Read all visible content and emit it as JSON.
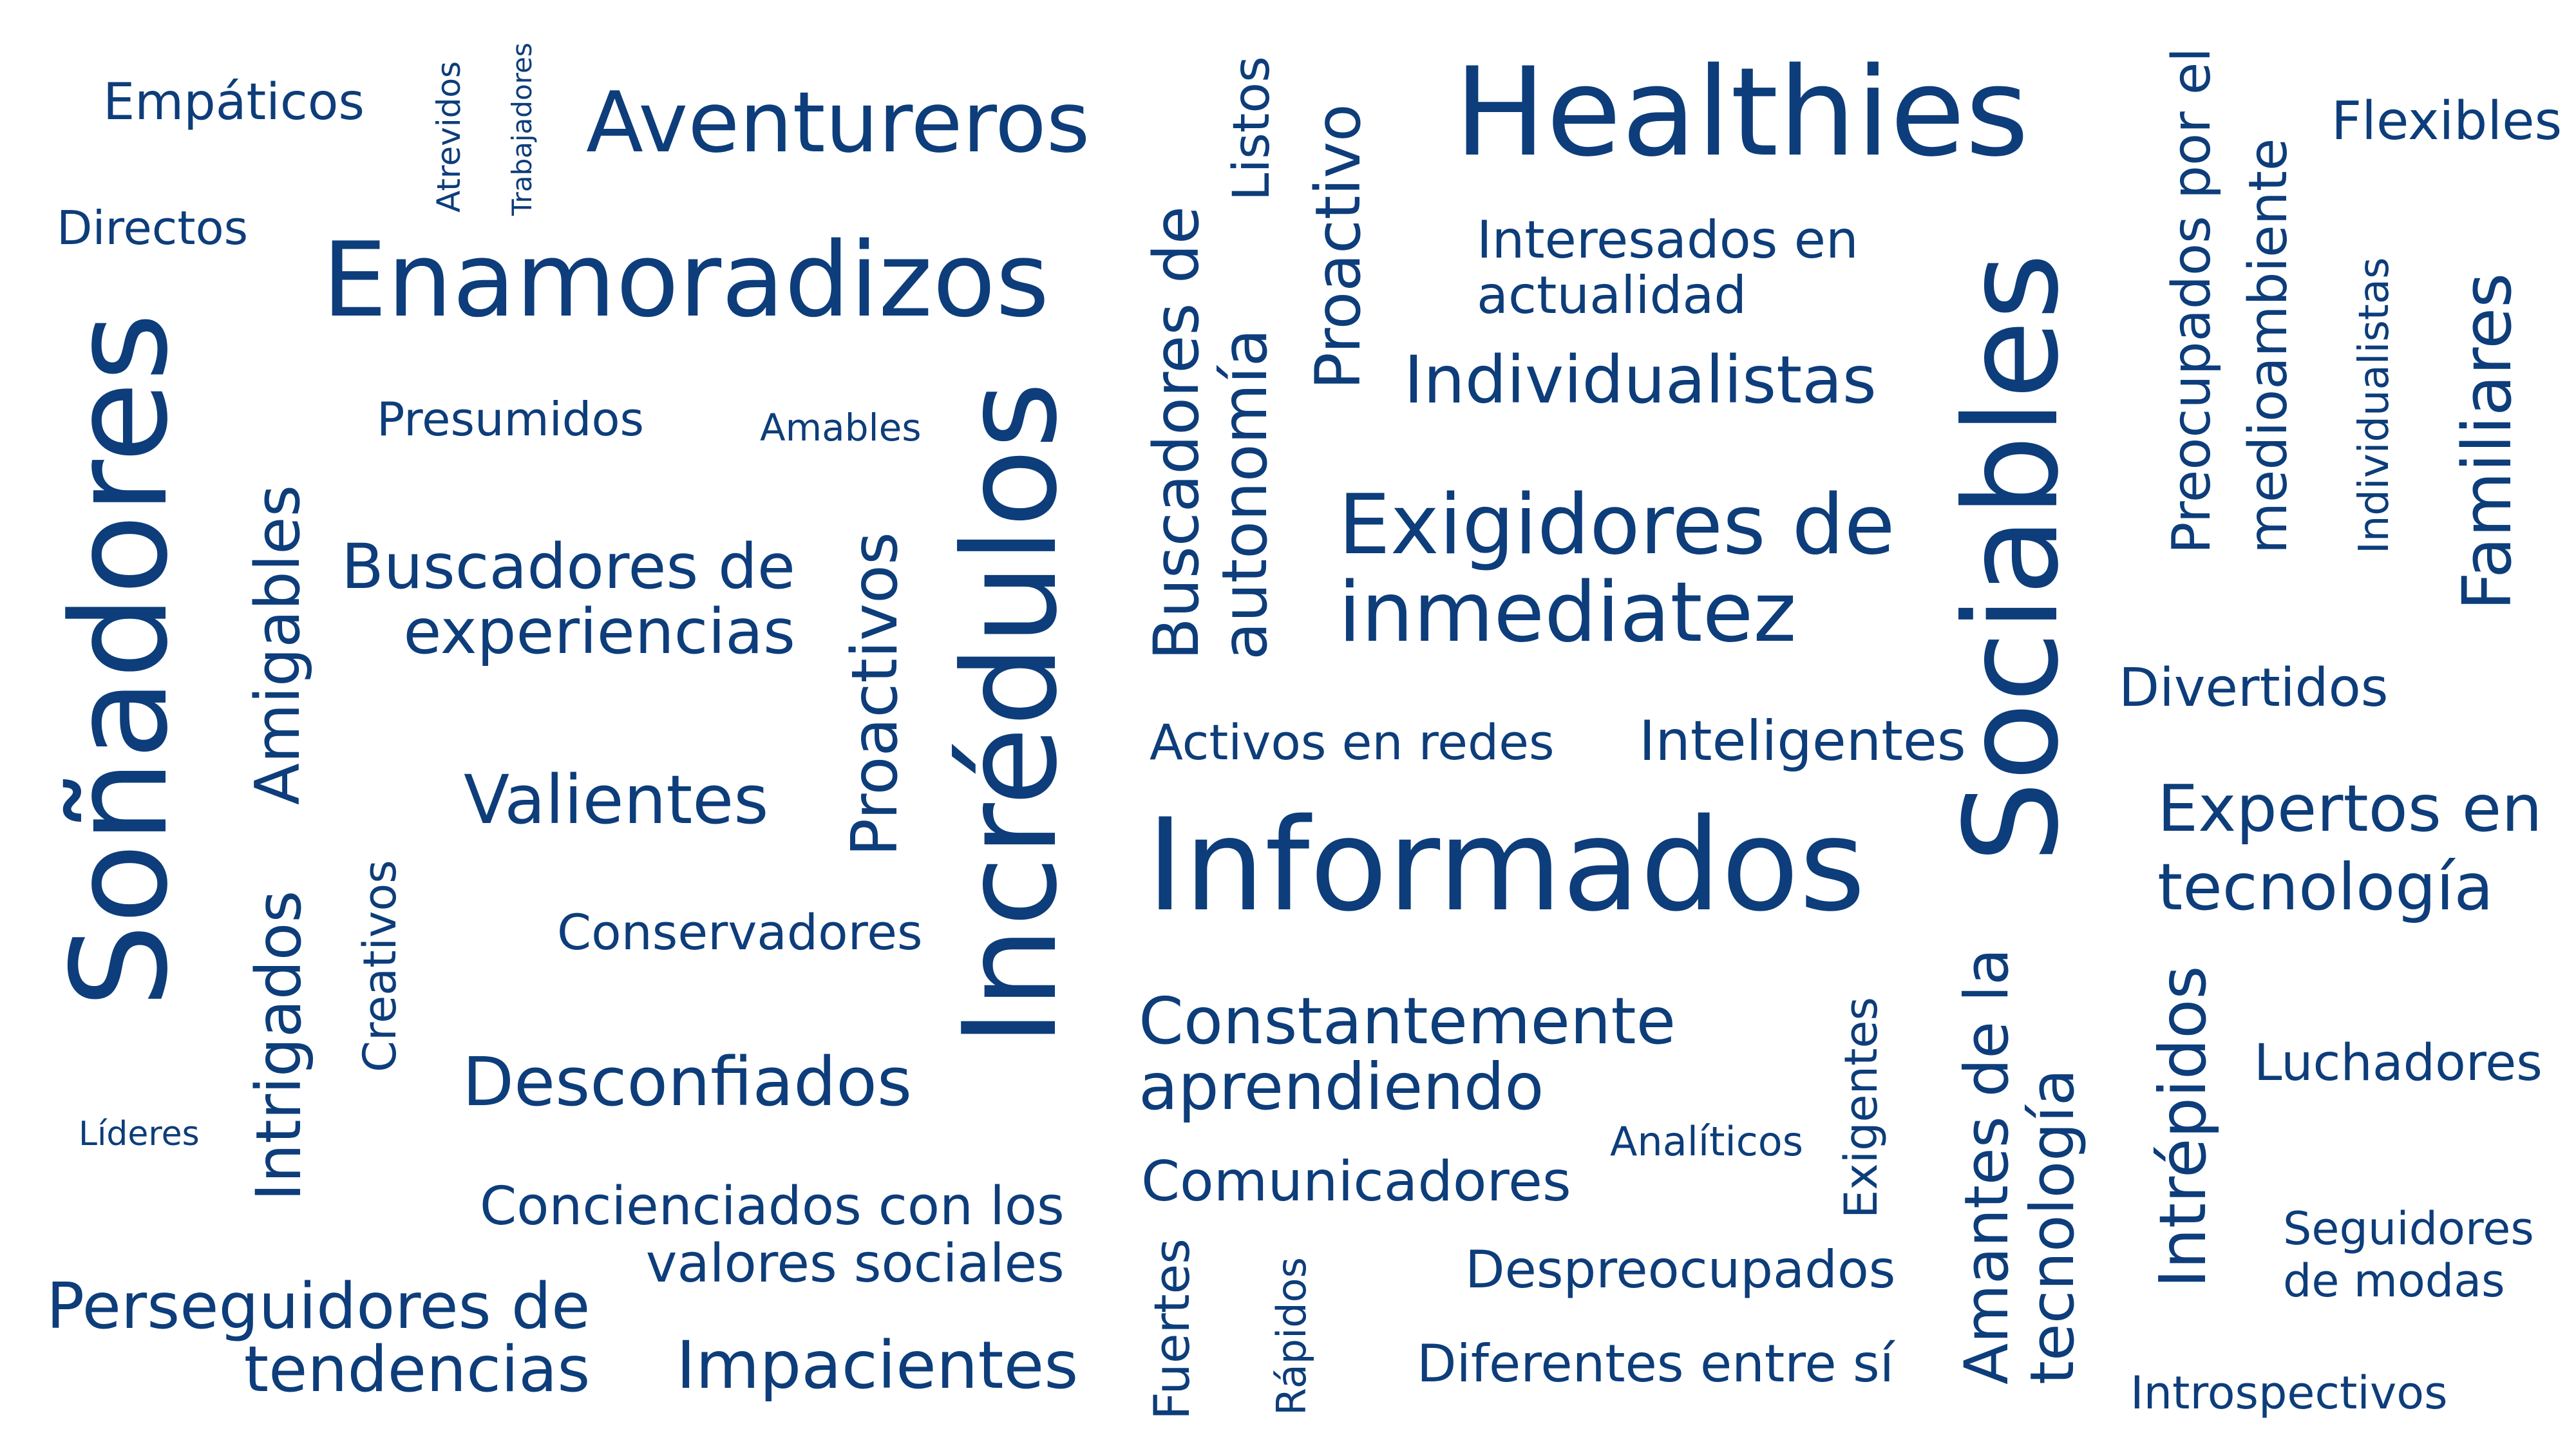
{
  "color": "#0d3d7a",
  "words": [
    {
      "id": "empaticos",
      "text": "Empáticos"
    },
    {
      "id": "atrevidos",
      "text": "Atrevidos"
    },
    {
      "id": "trabajadores",
      "text": "Trabajadores"
    },
    {
      "id": "aventureros",
      "text": "Aventureros"
    },
    {
      "id": "directos",
      "text": "Directos"
    },
    {
      "id": "enamoradizos",
      "text": "Enamoradizos"
    },
    {
      "id": "presumidos",
      "text": "Presumidos"
    },
    {
      "id": "amables",
      "text": "Amables"
    },
    {
      "id": "sonadores",
      "text": "Soñadores"
    },
    {
      "id": "amigables",
      "text": "Amigables"
    },
    {
      "id": "buscadores-experiencias",
      "text": "Buscadores de\nexperiencias"
    },
    {
      "id": "proactivos",
      "text": "Proactivos"
    },
    {
      "id": "incredulos",
      "text": "Incrédulos"
    },
    {
      "id": "valientes",
      "text": "Valientes"
    },
    {
      "id": "conservadores",
      "text": "Conservadores"
    },
    {
      "id": "creativos",
      "text": "Creativos"
    },
    {
      "id": "intrigados",
      "text": "Intrigados"
    },
    {
      "id": "desconfiados",
      "text": "Desconfiados"
    },
    {
      "id": "lideres",
      "text": "Líderes"
    },
    {
      "id": "concienciados",
      "text": "Concienciados con los\nvalores sociales"
    },
    {
      "id": "perseguidores",
      "text": "Perseguidores de\ntendencias"
    },
    {
      "id": "impacientes",
      "text": "Impacientes"
    },
    {
      "id": "listos",
      "text": "Listos"
    },
    {
      "id": "proactivo",
      "text": "Proactivo"
    },
    {
      "id": "buscadores-autonomia",
      "text": "Buscadores de\nautonomía"
    },
    {
      "id": "healthies",
      "text": "Healthies"
    },
    {
      "id": "interesados",
      "text": "Interesados en\nactualidad"
    },
    {
      "id": "individualistas-h",
      "text": "Individualistas"
    },
    {
      "id": "exigidores",
      "text": "Exigidores de\ninmediatez"
    },
    {
      "id": "activos-redes",
      "text": "Activos en redes"
    },
    {
      "id": "inteligentes",
      "text": "Inteligentes"
    },
    {
      "id": "informados",
      "text": "Informados"
    },
    {
      "id": "constantemente",
      "text": "Constantemente\naprendiendo"
    },
    {
      "id": "comunicadores",
      "text": "Comunicadores"
    },
    {
      "id": "analiticos",
      "text": "Analíticos"
    },
    {
      "id": "exigentes",
      "text": "Exigentes"
    },
    {
      "id": "despreocupados",
      "text": "Despreocupados"
    },
    {
      "id": "fuertes",
      "text": "Fuertes"
    },
    {
      "id": "rapidos",
      "text": "Rápidos"
    },
    {
      "id": "diferentes",
      "text": "Diferentes entre sí"
    },
    {
      "id": "sociables",
      "text": "Sociables"
    },
    {
      "id": "amantes",
      "text": "Amantes de la\ntecnología"
    },
    {
      "id": "preocupados",
      "text": "Preocupados por el\nmedioambiente"
    },
    {
      "id": "individualistas-v",
      "text": "Individualistas"
    },
    {
      "id": "flexibles",
      "text": "Flexibles"
    },
    {
      "id": "familiares",
      "text": "Familiares"
    },
    {
      "id": "divertidos",
      "text": "Divertidos"
    },
    {
      "id": "expertos",
      "text": "Expertos en\ntecnología"
    },
    {
      "id": "intrepidos",
      "text": "Intrépidos"
    },
    {
      "id": "luchadores",
      "text": "Luchadores"
    },
    {
      "id": "seguidores",
      "text": "Seguidores\nde modas"
    },
    {
      "id": "introspectivos",
      "text": "Introspectivos"
    }
  ]
}
